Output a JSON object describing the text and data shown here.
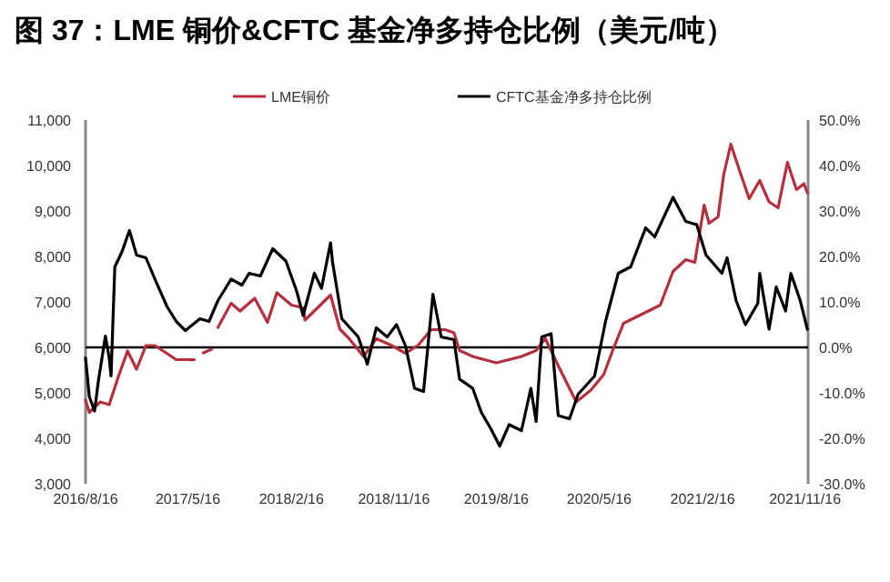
{
  "chart_data": {
    "type": "line",
    "title": "图 37：LME 铜价&CFTC 基金净多持仓比例（美元/吨）",
    "legend": "top",
    "grid": false,
    "line_style": "solid",
    "xlim": [
      "2016-08-16",
      "2021-11-24"
    ],
    "xticks": [
      {
        "value": "2016-08-16",
        "label": "2016/8/16"
      },
      {
        "value": "2017-05-16",
        "label": "2017/5/16"
      },
      {
        "value": "2018-02-16",
        "label": "2018/2/16"
      },
      {
        "value": "2018-11-16",
        "label": "2018/11/16"
      },
      {
        "value": "2019-08-16",
        "label": "2019/8/16"
      },
      {
        "value": "2020-05-16",
        "label": "2020/5/16"
      },
      {
        "value": "2021-02-16",
        "label": "2021/2/16"
      },
      {
        "value": "2021-11-16",
        "label": "2021/11/16"
      }
    ],
    "ylim": [
      3000,
      11000
    ],
    "yticks": [
      {
        "value": 3000,
        "label": "3,000"
      },
      {
        "value": 4000,
        "label": "4,000"
      },
      {
        "value": 5000,
        "label": "5,000"
      },
      {
        "value": 6000,
        "label": "6,000"
      },
      {
        "value": 7000,
        "label": "7,000"
      },
      {
        "value": 8000,
        "label": "8,000"
      },
      {
        "value": 9000,
        "label": "9,000"
      },
      {
        "value": 10000,
        "label": "10,000"
      },
      {
        "value": 11000,
        "label": "11,000"
      }
    ],
    "y2lim": [
      -30,
      50
    ],
    "y2ticks": [
      {
        "value": -30,
        "label": "-30.0%"
      },
      {
        "value": -20,
        "label": "-20.0%"
      },
      {
        "value": -10,
        "label": "-10.0%"
      },
      {
        "value": 0,
        "label": "0.0%"
      },
      {
        "value": 10,
        "label": "10.0%"
      },
      {
        "value": 20,
        "label": "20.0%"
      },
      {
        "value": 30,
        "label": "30.0%"
      },
      {
        "value": 40,
        "label": "40.0%"
      },
      {
        "value": 50,
        "label": "50.0%"
      }
    ],
    "ref_lines": [
      {
        "axis": "y",
        "value": 6000,
        "color": "#000000"
      }
    ],
    "series": [
      {
        "name": "LME铜价",
        "color": "#b5303c",
        "x": [
          "2016-08-16",
          "2016-08-26",
          "2016-09-24",
          "2016-10-18",
          "2016-11-12",
          "2016-12-06",
          "2016-12-30",
          "2017-01-24",
          "2017-02-17",
          "2017-04-15",
          "2017-06-02",
          "2017-06-18",
          "2017-06-26",
          "2017-07-18",
          "2017-07-22",
          "2017-08-04",
          "2017-09-08",
          "2017-10-02",
          "2017-11-10",
          "2017-12-14",
          "2018-01-08",
          "2018-02-16",
          "2018-03-19",
          "2018-03-24",
          "2018-05-31",
          "2018-06-25",
          "2018-07-19",
          "2018-08-27",
          "2018-09-30",
          "2018-11-08",
          "2018-12-17",
          "2019-01-20",
          "2019-02-23",
          "2019-04-01",
          "2019-04-25",
          "2019-05-10",
          "2019-06-14",
          "2019-08-16",
          "2019-10-22",
          "2019-11-30",
          "2019-12-24",
          "2020-02-01",
          "2020-03-16",
          "2020-04-24",
          "2020-05-28",
          "2020-06-21",
          "2020-07-20",
          "2020-09-07",
          "2020-10-26",
          "2020-11-29",
          "2021-01-02",
          "2021-01-26",
          "2021-02-20",
          "2021-03-05",
          "2021-03-29",
          "2021-04-13",
          "2021-05-02",
          "2021-05-26",
          "2021-06-20",
          "2021-07-18",
          "2021-08-12",
          "2021-09-05",
          "2021-09-30",
          "2021-10-24",
          "2021-11-13",
          "2021-11-22"
        ],
        "values": [
          4840,
          4570,
          4800,
          4740,
          5370,
          5920,
          5520,
          6040,
          6040,
          5730,
          5730,
          null,
          5880,
          5960,
          null,
          6440,
          6970,
          6800,
          7080,
          6550,
          7200,
          6930,
          6870,
          6600,
          7150,
          6400,
          6200,
          5800,
          6190,
          6050,
          5870,
          6050,
          6390,
          6390,
          6320,
          5930,
          5800,
          5660,
          5800,
          5930,
          6200,
          5530,
          4800,
          5060,
          5400,
          5930,
          6530,
          6730,
          6930,
          7670,
          7930,
          7870,
          9130,
          8730,
          8870,
          9800,
          10470,
          9870,
          9270,
          9670,
          9200,
          9070,
          10070,
          9470,
          9600,
          9400
        ]
      },
      {
        "name": "CFTC基金净多持仓比例",
        "color": "#000000",
        "axis": "y2",
        "x": [
          "2016-08-16",
          "2016-08-26",
          "2016-09-09",
          "2016-09-19",
          "2016-10-08",
          "2016-10-18",
          "2016-10-23",
          "2016-11-02",
          "2016-11-21",
          "2016-12-11",
          "2016-12-30",
          "2017-01-24",
          "2017-02-17",
          "2017-03-21",
          "2017-04-15",
          "2017-05-09",
          "2017-06-17",
          "2017-07-11",
          "2017-08-04",
          "2017-09-08",
          "2017-10-07",
          "2017-10-26",
          "2017-11-25",
          "2017-12-28",
          "2018-02-01",
          "2018-03-02",
          "2018-03-19",
          "2018-04-18",
          "2018-05-07",
          "2018-05-31",
          "2018-06-05",
          "2018-06-30",
          "2018-08-13",
          "2018-09-06",
          "2018-09-30",
          "2018-10-29",
          "2018-11-23",
          "2018-12-17",
          "2019-01-10",
          "2019-02-03",
          "2019-02-28",
          "2019-03-22",
          "2019-04-25",
          "2019-05-10",
          "2019-06-14",
          "2019-07-07",
          "2019-07-31",
          "2019-08-25",
          "2019-09-19",
          "2019-10-22",
          "2019-11-16",
          "2019-11-30",
          "2019-12-15",
          "2020-01-09",
          "2020-01-28",
          "2020-02-27",
          "2020-03-21",
          "2020-05-04",
          "2020-06-02",
          "2020-07-06",
          "2020-08-08",
          "2020-09-17",
          "2020-10-11",
          "2020-11-29",
          "2021-01-02",
          "2021-01-31",
          "2021-02-25",
          "2021-04-08",
          "2021-04-22",
          "2021-05-16",
          "2021-06-10",
          "2021-07-13",
          "2021-07-18",
          "2021-08-12",
          "2021-08-31",
          "2021-09-25",
          "2021-10-09",
          "2021-11-03",
          "2021-11-22"
        ],
        "values": [
          -2.3,
          -10.8,
          -14,
          -7.5,
          2.5,
          -2.3,
          -6.3,
          17.7,
          21,
          25.7,
          20.3,
          19.7,
          15,
          9,
          5.7,
          3.7,
          6.3,
          5.7,
          10.3,
          15,
          13.7,
          16.3,
          15.7,
          21.7,
          19,
          12.3,
          7,
          16.3,
          13,
          23,
          19,
          6.3,
          2.3,
          -3.7,
          4.3,
          2.3,
          5,
          0.3,
          -9,
          -9.7,
          11.7,
          2.3,
          1.7,
          -7,
          -9,
          -14.3,
          -17.7,
          -21.7,
          -17,
          -18.3,
          -9,
          -16.3,
          2.3,
          3,
          -15,
          -15.7,
          -10.3,
          -6.3,
          5.7,
          16.3,
          17.7,
          26.3,
          24.3,
          33,
          27.7,
          27,
          20.3,
          16.3,
          19.7,
          10.3,
          5,
          9.7,
          16.3,
          4,
          13.3,
          8,
          16.3,
          10.3,
          4
        ]
      }
    ]
  }
}
